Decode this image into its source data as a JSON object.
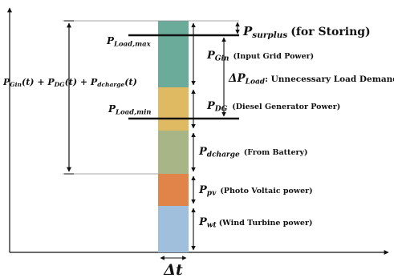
{
  "labels": {
    "surplus_symbol": "P",
    "surplus_sub": "surplus",
    "surplus_text": "(for Storing)",
    "load_max_symbol": "P",
    "load_max_sub": "Load,max",
    "load_min_symbol": "P",
    "load_min_sub": "Load,min",
    "gin_symbol": "P",
    "gin_sub": "Gin",
    "gin_text": "(Input Grid Power)",
    "delta_load_symbol": "ΔP",
    "delta_load_sub": "Load",
    "delta_load_text": ": Unnecessary Load Demand",
    "dg_symbol": "P",
    "dg_sub": "DG",
    "dg_text": "(Diesel Generator Power)",
    "dcharge_symbol": "P",
    "dcharge_sub": "dcharge",
    "dcharge_text": "(From Battery)",
    "pv_symbol": "P",
    "pv_sub": "pv",
    "pv_text": "(Photo Voltaic power)",
    "wt_symbol": "P",
    "wt_sub": "wt",
    "wt_text": "(Wind Turbine power)",
    "sum_formula": "P",
    "sum_p1": "Gin",
    "sum_a": "(t) + P",
    "sum_p2": "DG",
    "sum_b": "(t) + P",
    "sum_p3": "dcharge",
    "sum_c": "(t)",
    "delta_t": "Δt"
  },
  "colors": {
    "gin": "#6aab9a",
    "dg": "#dfba62",
    "dcharge": "#a8b587",
    "pv": "#e0844a",
    "wt": "#9fbfdc",
    "line": "#111111",
    "guide": "#888888"
  }
}
